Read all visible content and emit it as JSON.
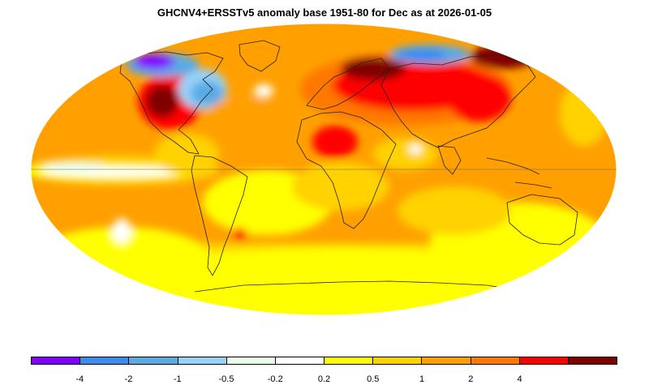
{
  "title": "GHCNV4+ERSSTv5 anomaly base 1951-80 for Dec as at 2026-01-05",
  "legend": {
    "colors": [
      "#8000ff",
      "#3c8cf0",
      "#5aaae6",
      "#96d2fa",
      "#e6ffe6",
      "#ffffff",
      "#ffff00",
      "#ffd200",
      "#ffa000",
      "#ff7800",
      "#ff0000",
      "#800000"
    ],
    "tick_labels": [
      "-4",
      "-2",
      "-1",
      "-0.5",
      "-0.2",
      "0.2",
      "0.5",
      "1",
      "2",
      "4"
    ]
  },
  "map": {
    "projection": "mollweide",
    "variable": "temperature anomaly",
    "units": "°C"
  }
}
